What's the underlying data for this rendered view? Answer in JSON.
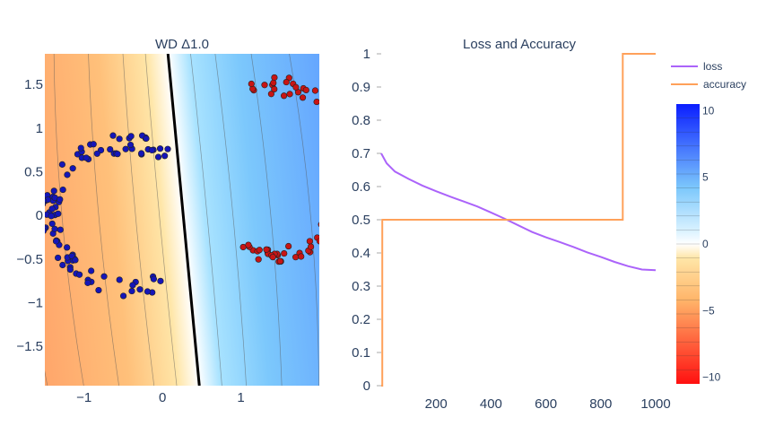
{
  "chart_data": [
    {
      "type": "scatter",
      "title": "WD Δ1.0",
      "xlim": [
        -1.5,
        2.0
      ],
      "ylim": [
        -1.95,
        1.85
      ],
      "x_ticks": [
        -1,
        0,
        1
      ],
      "x_tick_labels": [
        "−1",
        "0",
        "1"
      ],
      "y_ticks": [
        1.5,
        1,
        0.5,
        0,
        -0.5,
        -1,
        -1.5
      ],
      "y_tick_labels": [
        "1.5",
        "1",
        "0.5",
        "0",
        "−0.5",
        "−1",
        "−1.5"
      ],
      "decision_boundary": {
        "x": [
          0.07,
          0.47
        ],
        "y": [
          1.85,
          -1.95
        ]
      },
      "series": [
        {
          "class": 0,
          "color": "#1515b8",
          "count": 100,
          "center": [
            -0.45,
            0.0
          ],
          "radius": [
            0.98,
            0.82
          ],
          "arc_deg": [
            58,
            302
          ]
        },
        {
          "class": 1,
          "color": "#c81414",
          "count": 100,
          "center": [
            1.45,
            0.5
          ],
          "radius": [
            0.9,
            0.98
          ],
          "arc_deg": [
            -118,
            118
          ]
        }
      ]
    },
    {
      "type": "line",
      "title": "Loss and Accuracy",
      "xlim": [
        0,
        1000
      ],
      "ylim": [
        0,
        1
      ],
      "x_ticks": [
        200,
        400,
        600,
        800,
        1000
      ],
      "x_tick_labels": [
        "200",
        "400",
        "600",
        "800",
        "1000"
      ],
      "y_ticks": [
        0,
        0.1,
        0.2,
        0.3,
        0.4,
        0.5,
        0.6,
        0.7,
        0.8,
        0.9,
        1
      ],
      "y_tick_labels": [
        "0",
        "0.1",
        "0.2",
        "0.3",
        "0.4",
        "0.5",
        "0.6",
        "0.7",
        "0.8",
        "0.9",
        "1"
      ],
      "series": [
        {
          "name": "loss",
          "color": "#ab63fa",
          "x": [
            0,
            20,
            50,
            100,
            150,
            200,
            250,
            300,
            350,
            400,
            450,
            500,
            550,
            600,
            650,
            700,
            750,
            800,
            850,
            900,
            950,
            1000
          ],
          "y": [
            0.7,
            0.67,
            0.645,
            0.623,
            0.603,
            0.586,
            0.57,
            0.555,
            0.54,
            0.522,
            0.503,
            0.483,
            0.463,
            0.447,
            0.433,
            0.418,
            0.402,
            0.388,
            0.373,
            0.36,
            0.35,
            0.348
          ]
        },
        {
          "name": "accuracy",
          "color": "#ffa15a",
          "x": [
            0,
            4,
            4,
            880,
            880,
            1000
          ],
          "y": [
            0,
            0,
            0.5,
            0.5,
            1,
            1
          ]
        }
      ]
    }
  ],
  "colorbar": {
    "ticks": [
      10,
      5,
      0,
      -5,
      -10
    ],
    "tick_labels": [
      "10",
      "5",
      "0",
      "−5",
      "−10"
    ],
    "range": [
      -10.5,
      10.5
    ]
  }
}
